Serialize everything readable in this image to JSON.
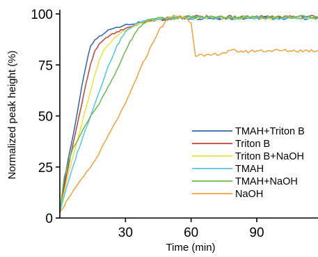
{
  "chart_data": {
    "type": "line",
    "title": "",
    "xlabel": "Time (min)",
    "ylabel": "Normalized peak height (%)",
    "xlim": [
      0,
      118
    ],
    "ylim": [
      0,
      100
    ],
    "x_ticks": [
      30,
      60,
      90
    ],
    "y_ticks": [
      0,
      25,
      50,
      75,
      100
    ],
    "grid": false,
    "legend_position": "bottom-right",
    "series": [
      {
        "name": "TMAH+Triton B",
        "color": "#2f62ad",
        "x": [
          0,
          2,
          4,
          6,
          8,
          10,
          12,
          14,
          16,
          18,
          20,
          22,
          24,
          26,
          28,
          30,
          33,
          36,
          40,
          44,
          48,
          52,
          56,
          60,
          65,
          70,
          75,
          80,
          85,
          90,
          95,
          100,
          105,
          110,
          115,
          118
        ],
        "y": [
          3,
          18,
          30,
          40,
          52,
          64,
          75,
          84,
          87,
          89,
          90,
          92,
          93,
          93.5,
          94,
          94.5,
          95,
          95.5,
          96,
          97,
          97.5,
          98,
          98,
          98,
          98,
          98,
          98,
          98,
          98,
          98,
          98,
          98,
          98,
          98,
          98,
          98
        ]
      },
      {
        "name": "Triton B",
        "color": "#c0403a",
        "x": [
          0,
          2,
          4,
          6,
          8,
          10,
          12,
          14,
          16,
          18,
          20,
          22,
          24,
          26,
          28,
          30,
          33,
          36,
          40,
          44,
          48,
          52,
          56,
          60,
          65,
          70,
          75,
          80,
          85,
          90,
          95,
          100,
          105,
          110,
          115,
          118
        ],
        "y": [
          3,
          15,
          26,
          36,
          46,
          56,
          66,
          75,
          82,
          85,
          87,
          89,
          90,
          91,
          92,
          93,
          94,
          95,
          96,
          97,
          97.5,
          98,
          98.5,
          98.5,
          98.5,
          98.5,
          98.5,
          98.5,
          98.5,
          98.5,
          98.5,
          98.5,
          98.5,
          98.5,
          98.5,
          98.5
        ]
      },
      {
        "name": "Triton B+NaOH",
        "color": "#e8e23a",
        "x": [
          0,
          2,
          4,
          6,
          8,
          10,
          12,
          14,
          16,
          18,
          20,
          22,
          24,
          26,
          28,
          30,
          33,
          36,
          40,
          44,
          48,
          52,
          56,
          60,
          65,
          70,
          75,
          80,
          85,
          90,
          95,
          100,
          105,
          110,
          115,
          118
        ],
        "y": [
          3,
          13,
          22,
          30,
          38,
          46,
          54,
          62,
          70,
          77,
          82,
          85,
          87,
          89,
          91,
          92,
          93.5,
          95,
          96,
          97,
          97.5,
          98,
          98,
          98,
          98,
          98,
          98,
          98,
          98,
          98,
          98,
          98,
          98,
          98,
          98,
          98
        ]
      },
      {
        "name": "TMAH",
        "color": "#52c3e8",
        "x": [
          0,
          2,
          4,
          6,
          8,
          10,
          12,
          14,
          16,
          18,
          20,
          22,
          24,
          26,
          28,
          30,
          33,
          36,
          40,
          44,
          48,
          52,
          56,
          60,
          65,
          70,
          75,
          80,
          85,
          90,
          95,
          100,
          105,
          110,
          115,
          118
        ],
        "y": [
          3,
          11,
          18,
          25,
          32,
          38,
          44,
          50,
          56,
          62,
          68,
          74,
          79,
          84,
          88,
          91,
          94,
          96,
          97,
          97.5,
          98,
          98,
          98,
          98,
          98,
          98,
          98,
          98,
          98,
          98,
          98,
          98,
          98,
          98,
          98,
          98
        ]
      },
      {
        "name": "TMAH+NaOH",
        "color": "#6ab94a",
        "x": [
          0,
          2,
          4,
          6,
          8,
          10,
          12,
          14,
          16,
          18,
          20,
          22,
          24,
          26,
          28,
          30,
          33,
          36,
          40,
          44,
          48,
          52,
          56,
          60,
          65,
          70,
          75,
          80,
          85,
          90,
          95,
          100,
          105,
          110,
          115,
          118
        ],
        "y": [
          3,
          20,
          28,
          34,
          38,
          42,
          46,
          50,
          53,
          56,
          60,
          64,
          68,
          72,
          77,
          82,
          88,
          93,
          97,
          98,
          98,
          98,
          98.5,
          98.5,
          98.5,
          98.5,
          98.5,
          98.5,
          98.5,
          98.5,
          98.5,
          98.5,
          98.5,
          98.5,
          98.5,
          98.5
        ]
      },
      {
        "name": "NaOH",
        "color": "#f2a03d",
        "x": [
          0,
          2,
          4,
          6,
          8,
          10,
          12,
          14,
          16,
          18,
          20,
          22,
          24,
          26,
          28,
          30,
          32,
          34,
          36,
          38,
          40,
          42,
          44,
          46,
          48,
          50,
          52,
          54,
          56,
          58,
          60,
          61,
          62,
          64,
          66,
          70,
          75,
          80,
          85,
          90,
          95,
          100,
          105,
          110,
          115,
          118
        ],
        "y": [
          3,
          6,
          10,
          13,
          16,
          19,
          22,
          25,
          28,
          32,
          36,
          40,
          44,
          48,
          52,
          56,
          61,
          66,
          71,
          76,
          80,
          85,
          89,
          93,
          96,
          98,
          99,
          99,
          98.5,
          98,
          96,
          88,
          80,
          80,
          79,
          80,
          81,
          82,
          81.5,
          82,
          82,
          82,
          82,
          82,
          82,
          82
        ]
      }
    ]
  }
}
